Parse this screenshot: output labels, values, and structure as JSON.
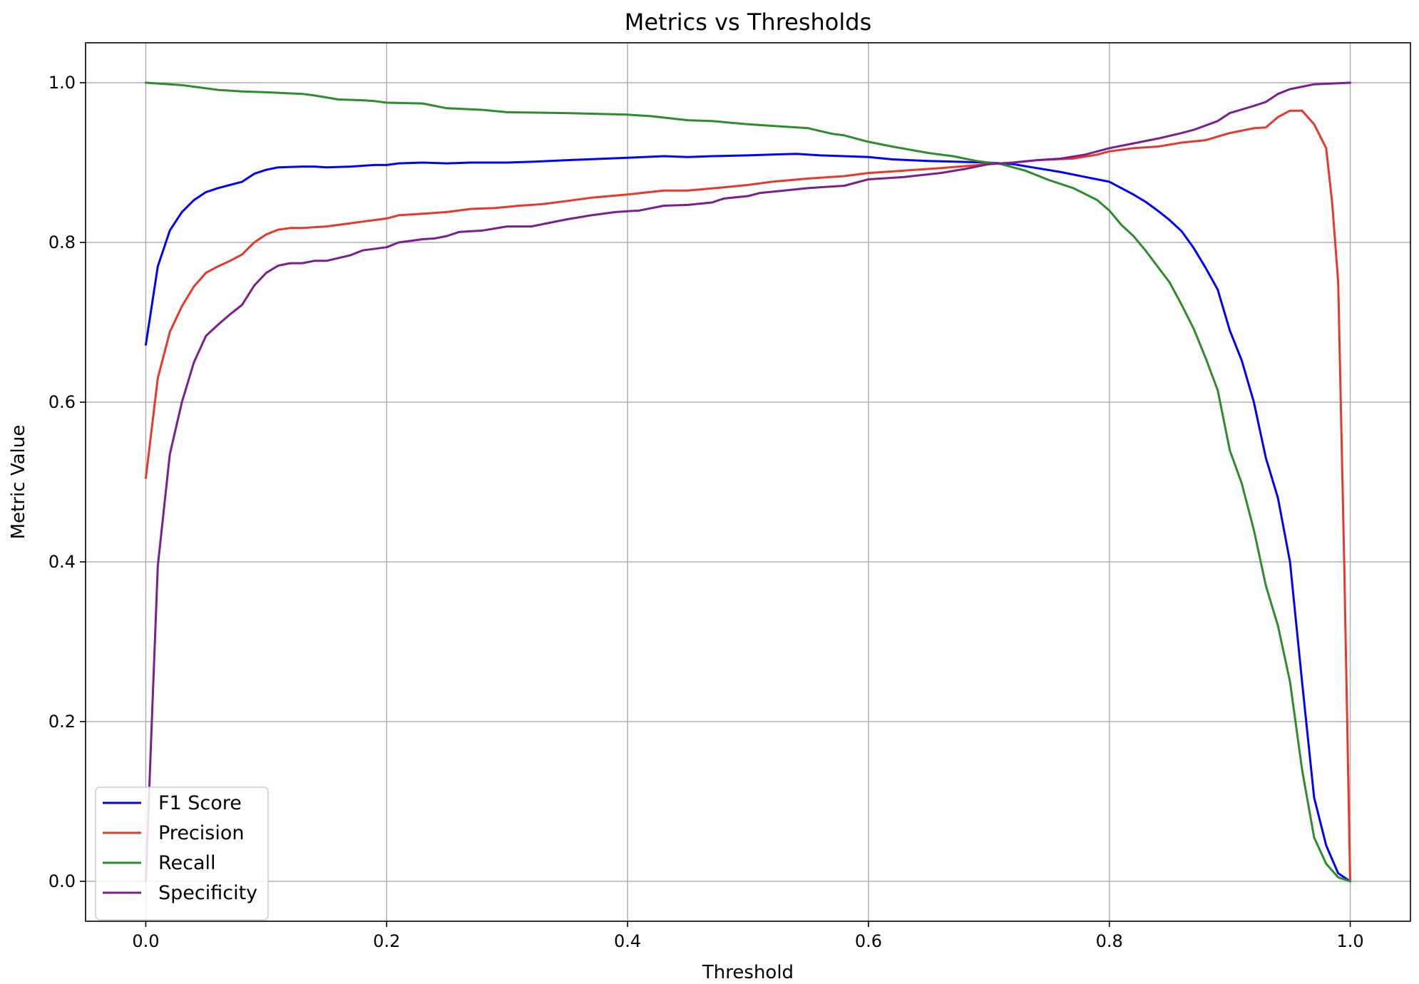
{
  "chart_data": {
    "type": "line",
    "title": "Metrics vs Thresholds",
    "xlabel": "Threshold",
    "ylabel": "Metric Value",
    "xlim": [
      -0.05,
      1.05
    ],
    "ylim": [
      -0.05,
      1.05
    ],
    "xticks": [
      0.0,
      0.2,
      0.4,
      0.6,
      0.8,
      1.0
    ],
    "xtick_labels": [
      "0.0",
      "0.2",
      "0.4",
      "0.6",
      "0.8",
      "1.0"
    ],
    "yticks": [
      0.0,
      0.2,
      0.4,
      0.6,
      0.8,
      1.0
    ],
    "ytick_labels": [
      "0.0",
      "0.2",
      "0.4",
      "0.6",
      "0.8",
      "1.0"
    ],
    "grid": true,
    "legend_position": "lower-left",
    "series": [
      {
        "name": "F1 Score",
        "color": "#0000ff",
        "points": [
          [
            0.0,
            0.672
          ],
          [
            0.01,
            0.77
          ],
          [
            0.02,
            0.815
          ],
          [
            0.03,
            0.838
          ],
          [
            0.04,
            0.853
          ],
          [
            0.05,
            0.863
          ],
          [
            0.06,
            0.868
          ],
          [
            0.08,
            0.876
          ],
          [
            0.09,
            0.886
          ],
          [
            0.1,
            0.891
          ],
          [
            0.11,
            0.894
          ],
          [
            0.13,
            0.895
          ],
          [
            0.14,
            0.895
          ],
          [
            0.15,
            0.894
          ],
          [
            0.17,
            0.895
          ],
          [
            0.19,
            0.897
          ],
          [
            0.2,
            0.897
          ],
          [
            0.21,
            0.899
          ],
          [
            0.23,
            0.9
          ],
          [
            0.25,
            0.899
          ],
          [
            0.27,
            0.9
          ],
          [
            0.3,
            0.9
          ],
          [
            0.32,
            0.901
          ],
          [
            0.35,
            0.903
          ],
          [
            0.4,
            0.906
          ],
          [
            0.43,
            0.908
          ],
          [
            0.45,
            0.907
          ],
          [
            0.47,
            0.908
          ],
          [
            0.5,
            0.909
          ],
          [
            0.52,
            0.91
          ],
          [
            0.54,
            0.911
          ],
          [
            0.56,
            0.909
          ],
          [
            0.58,
            0.908
          ],
          [
            0.6,
            0.907
          ],
          [
            0.62,
            0.904
          ],
          [
            0.65,
            0.902
          ],
          [
            0.7,
            0.9
          ],
          [
            0.72,
            0.898
          ],
          [
            0.74,
            0.893
          ],
          [
            0.76,
            0.888
          ],
          [
            0.78,
            0.882
          ],
          [
            0.8,
            0.876
          ],
          [
            0.81,
            0.868
          ],
          [
            0.82,
            0.86
          ],
          [
            0.83,
            0.851
          ],
          [
            0.84,
            0.84
          ],
          [
            0.85,
            0.828
          ],
          [
            0.86,
            0.814
          ],
          [
            0.87,
            0.793
          ],
          [
            0.88,
            0.768
          ],
          [
            0.89,
            0.741
          ],
          [
            0.9,
            0.69
          ],
          [
            0.91,
            0.652
          ],
          [
            0.92,
            0.6
          ],
          [
            0.93,
            0.53
          ],
          [
            0.94,
            0.48
          ],
          [
            0.95,
            0.4
          ],
          [
            0.96,
            0.25
          ],
          [
            0.97,
            0.105
          ],
          [
            0.98,
            0.045
          ],
          [
            0.99,
            0.01
          ],
          [
            1.0,
            0.0
          ]
        ]
      },
      {
        "name": "Precision",
        "color": "#e8372c",
        "points": [
          [
            0.0,
            0.505
          ],
          [
            0.01,
            0.63
          ],
          [
            0.02,
            0.688
          ],
          [
            0.03,
            0.72
          ],
          [
            0.04,
            0.745
          ],
          [
            0.05,
            0.762
          ],
          [
            0.06,
            0.77
          ],
          [
            0.07,
            0.777
          ],
          [
            0.08,
            0.785
          ],
          [
            0.09,
            0.8
          ],
          [
            0.1,
            0.81
          ],
          [
            0.11,
            0.816
          ],
          [
            0.12,
            0.818
          ],
          [
            0.13,
            0.818
          ],
          [
            0.15,
            0.82
          ],
          [
            0.17,
            0.824
          ],
          [
            0.19,
            0.828
          ],
          [
            0.2,
            0.83
          ],
          [
            0.21,
            0.834
          ],
          [
            0.23,
            0.836
          ],
          [
            0.25,
            0.838
          ],
          [
            0.27,
            0.842
          ],
          [
            0.29,
            0.843
          ],
          [
            0.31,
            0.846
          ],
          [
            0.33,
            0.848
          ],
          [
            0.35,
            0.852
          ],
          [
            0.37,
            0.856
          ],
          [
            0.4,
            0.86
          ],
          [
            0.43,
            0.865
          ],
          [
            0.45,
            0.865
          ],
          [
            0.48,
            0.869
          ],
          [
            0.5,
            0.872
          ],
          [
            0.52,
            0.876
          ],
          [
            0.55,
            0.88
          ],
          [
            0.58,
            0.883
          ],
          [
            0.6,
            0.887
          ],
          [
            0.63,
            0.89
          ],
          [
            0.66,
            0.893
          ],
          [
            0.7,
            0.898
          ],
          [
            0.72,
            0.9
          ],
          [
            0.74,
            0.903
          ],
          [
            0.77,
            0.905
          ],
          [
            0.79,
            0.91
          ],
          [
            0.8,
            0.914
          ],
          [
            0.82,
            0.918
          ],
          [
            0.84,
            0.92
          ],
          [
            0.86,
            0.925
          ],
          [
            0.88,
            0.928
          ],
          [
            0.9,
            0.937
          ],
          [
            0.92,
            0.943
          ],
          [
            0.93,
            0.944
          ],
          [
            0.94,
            0.957
          ],
          [
            0.95,
            0.965
          ],
          [
            0.96,
            0.965
          ],
          [
            0.97,
            0.948
          ],
          [
            0.98,
            0.918
          ],
          [
            0.985,
            0.85
          ],
          [
            0.99,
            0.75
          ],
          [
            0.995,
            0.4
          ],
          [
            1.0,
            0.0
          ]
        ]
      },
      {
        "name": "Recall",
        "color": "#2e8b2e",
        "points": [
          [
            0.0,
            1.0
          ],
          [
            0.02,
            0.998
          ],
          [
            0.03,
            0.997
          ],
          [
            0.05,
            0.993
          ],
          [
            0.06,
            0.991
          ],
          [
            0.08,
            0.989
          ],
          [
            0.1,
            0.988
          ],
          [
            0.13,
            0.986
          ],
          [
            0.14,
            0.984
          ],
          [
            0.16,
            0.979
          ],
          [
            0.18,
            0.978
          ],
          [
            0.19,
            0.977
          ],
          [
            0.2,
            0.975
          ],
          [
            0.23,
            0.974
          ],
          [
            0.25,
            0.968
          ],
          [
            0.28,
            0.966
          ],
          [
            0.3,
            0.963
          ],
          [
            0.35,
            0.962
          ],
          [
            0.4,
            0.96
          ],
          [
            0.42,
            0.958
          ],
          [
            0.45,
            0.953
          ],
          [
            0.47,
            0.952
          ],
          [
            0.5,
            0.948
          ],
          [
            0.52,
            0.946
          ],
          [
            0.55,
            0.943
          ],
          [
            0.57,
            0.936
          ],
          [
            0.58,
            0.934
          ],
          [
            0.6,
            0.926
          ],
          [
            0.62,
            0.92
          ],
          [
            0.65,
            0.912
          ],
          [
            0.67,
            0.908
          ],
          [
            0.69,
            0.902
          ],
          [
            0.71,
            0.898
          ],
          [
            0.73,
            0.89
          ],
          [
            0.75,
            0.878
          ],
          [
            0.77,
            0.868
          ],
          [
            0.79,
            0.853
          ],
          [
            0.8,
            0.84
          ],
          [
            0.81,
            0.822
          ],
          [
            0.82,
            0.808
          ],
          [
            0.83,
            0.79
          ],
          [
            0.84,
            0.77
          ],
          [
            0.85,
            0.75
          ],
          [
            0.86,
            0.722
          ],
          [
            0.87,
            0.692
          ],
          [
            0.88,
            0.655
          ],
          [
            0.89,
            0.615
          ],
          [
            0.9,
            0.54
          ],
          [
            0.91,
            0.498
          ],
          [
            0.92,
            0.44
          ],
          [
            0.93,
            0.37
          ],
          [
            0.94,
            0.32
          ],
          [
            0.95,
            0.25
          ],
          [
            0.96,
            0.14
          ],
          [
            0.97,
            0.055
          ],
          [
            0.98,
            0.022
          ],
          [
            0.99,
            0.005
          ],
          [
            1.0,
            0.0
          ]
        ]
      },
      {
        "name": "Specificity",
        "color": "#7b1e8f",
        "points": [
          [
            0.0,
            0.0
          ],
          [
            0.005,
            0.2
          ],
          [
            0.01,
            0.395
          ],
          [
            0.02,
            0.535
          ],
          [
            0.03,
            0.6
          ],
          [
            0.04,
            0.65
          ],
          [
            0.05,
            0.683
          ],
          [
            0.06,
            0.697
          ],
          [
            0.07,
            0.71
          ],
          [
            0.08,
            0.722
          ],
          [
            0.09,
            0.746
          ],
          [
            0.1,
            0.762
          ],
          [
            0.11,
            0.771
          ],
          [
            0.12,
            0.774
          ],
          [
            0.13,
            0.774
          ],
          [
            0.14,
            0.777
          ],
          [
            0.15,
            0.777
          ],
          [
            0.17,
            0.784
          ],
          [
            0.18,
            0.79
          ],
          [
            0.2,
            0.794
          ],
          [
            0.21,
            0.8
          ],
          [
            0.23,
            0.804
          ],
          [
            0.24,
            0.805
          ],
          [
            0.25,
            0.808
          ],
          [
            0.26,
            0.813
          ],
          [
            0.28,
            0.815
          ],
          [
            0.3,
            0.82
          ],
          [
            0.32,
            0.82
          ],
          [
            0.35,
            0.829
          ],
          [
            0.37,
            0.834
          ],
          [
            0.39,
            0.838
          ],
          [
            0.41,
            0.84
          ],
          [
            0.43,
            0.846
          ],
          [
            0.45,
            0.847
          ],
          [
            0.47,
            0.85
          ],
          [
            0.48,
            0.855
          ],
          [
            0.5,
            0.858
          ],
          [
            0.51,
            0.862
          ],
          [
            0.53,
            0.865
          ],
          [
            0.55,
            0.868
          ],
          [
            0.58,
            0.871
          ],
          [
            0.6,
            0.879
          ],
          [
            0.63,
            0.882
          ],
          [
            0.66,
            0.887
          ],
          [
            0.68,
            0.892
          ],
          [
            0.7,
            0.898
          ],
          [
            0.72,
            0.9
          ],
          [
            0.74,
            0.903
          ],
          [
            0.76,
            0.905
          ],
          [
            0.78,
            0.91
          ],
          [
            0.8,
            0.918
          ],
          [
            0.82,
            0.924
          ],
          [
            0.84,
            0.93
          ],
          [
            0.86,
            0.937
          ],
          [
            0.87,
            0.941
          ],
          [
            0.89,
            0.952
          ],
          [
            0.9,
            0.962
          ],
          [
            0.92,
            0.971
          ],
          [
            0.93,
            0.976
          ],
          [
            0.94,
            0.986
          ],
          [
            0.95,
            0.992
          ],
          [
            0.96,
            0.995
          ],
          [
            0.97,
            0.998
          ],
          [
            1.0,
            1.0
          ]
        ]
      }
    ]
  }
}
